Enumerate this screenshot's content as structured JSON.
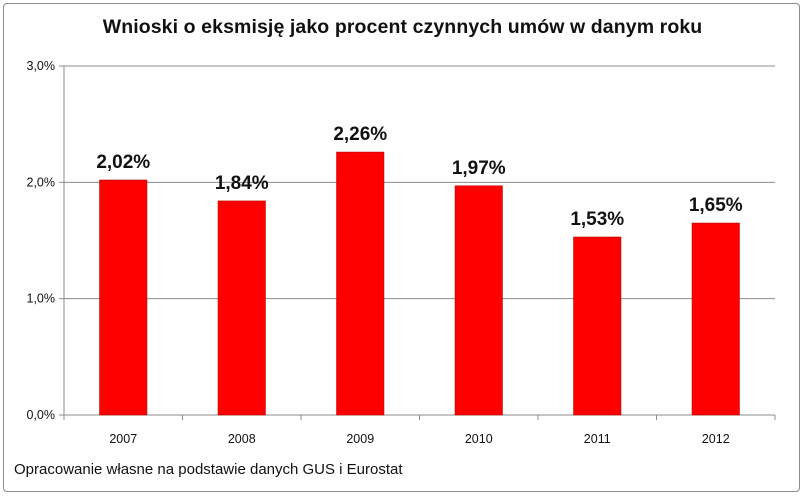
{
  "chart_data": {
    "type": "bar",
    "title": "Wnioski o eksmisję jako procent czynnych umów w danym roku",
    "categories": [
      "2007",
      "2008",
      "2009",
      "2010",
      "2011",
      "2012"
    ],
    "values": [
      2.02,
      1.84,
      2.26,
      1.97,
      1.53,
      1.65
    ],
    "data_labels": [
      "2,02%",
      "1,84%",
      "2,26%",
      "1,97%",
      "1,53%",
      "1,65%"
    ],
    "yticks": [
      0,
      1,
      2,
      3
    ],
    "ytick_labels": [
      "0,0%",
      "1,0%",
      "2,0%",
      "3,0%"
    ],
    "ylim": [
      0,
      3
    ],
    "grid": true,
    "xlabel": "",
    "ylabel": "",
    "bar_color": "#ff0000",
    "legend": false
  },
  "footnote": "Opracowanie własne na podstawie danych GUS i Eurostat"
}
